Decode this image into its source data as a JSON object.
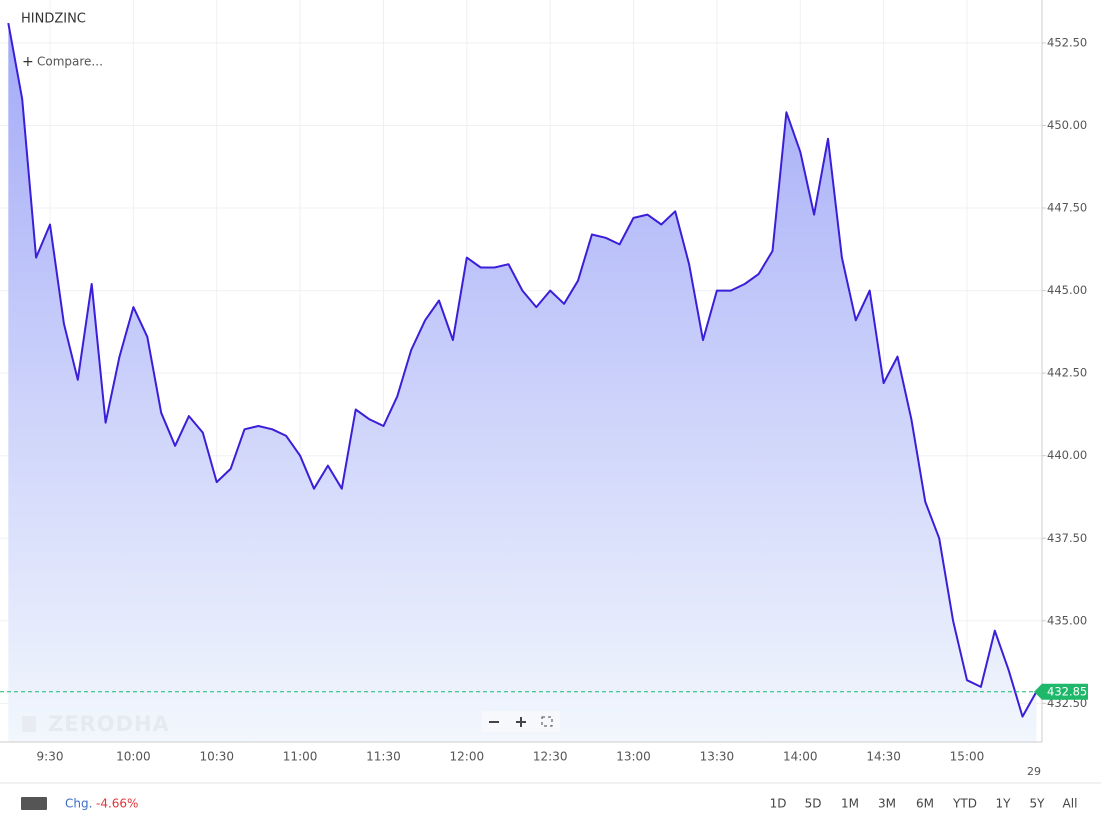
{
  "chart_data": {
    "type": "line",
    "title": "HINDZINC",
    "compare_label": "Compare...",
    "watermark": "ZERODHA",
    "x": [
      "9:15",
      "9:20",
      "9:25",
      "9:30",
      "9:35",
      "9:40",
      "9:45",
      "9:50",
      "9:55",
      "10:00",
      "10:05",
      "10:10",
      "10:15",
      "10:20",
      "10:25",
      "10:30",
      "10:35",
      "10:40",
      "10:45",
      "10:50",
      "10:55",
      "11:00",
      "11:05",
      "11:10",
      "11:15",
      "11:20",
      "11:25",
      "11:30",
      "11:35",
      "11:40",
      "11:45",
      "11:50",
      "11:55",
      "12:00",
      "12:05",
      "12:10",
      "12:15",
      "12:20",
      "12:25",
      "12:30",
      "12:35",
      "12:40",
      "12:45",
      "12:50",
      "12:55",
      "13:00",
      "13:05",
      "13:10",
      "13:15",
      "13:20",
      "13:25",
      "13:30",
      "13:35",
      "13:40",
      "13:45",
      "13:50",
      "13:55",
      "14:00",
      "14:05",
      "14:10",
      "14:15",
      "14:20",
      "14:25",
      "14:30",
      "14:35",
      "14:40",
      "14:45",
      "14:50",
      "14:55",
      "15:00",
      "15:05",
      "15:10",
      "15:15",
      "15:20",
      "15:25"
    ],
    "series": [
      {
        "name": "HINDZINC",
        "color": "#3b1fd8",
        "values": [
          453.1,
          450.8,
          446,
          447,
          444,
          442.3,
          445.2,
          441,
          443,
          444.5,
          443.6,
          441.3,
          440.3,
          441.2,
          440.7,
          439.2,
          439.6,
          440.8,
          440.9,
          440.8,
          440.6,
          440,
          439,
          439.7,
          439,
          441.4,
          441.1,
          440.9,
          441.8,
          443.2,
          444.1,
          444.7,
          443.5,
          446,
          445.7,
          445.7,
          445.8,
          445,
          444.5,
          445,
          444.6,
          445.3,
          446.7,
          446.6,
          446.4,
          447.2,
          447.3,
          447,
          447.4,
          445.8,
          443.5,
          445,
          445,
          445.2,
          445.5,
          446.2,
          450.4,
          449.2,
          447.3,
          449.6,
          446,
          444.1,
          445,
          442.2,
          443,
          441.1,
          438.6,
          437.5,
          435,
          433.2,
          433,
          434.7,
          433.5,
          432.1,
          432.85
        ]
      }
    ],
    "xlim": [
      "9:12",
      "15:27"
    ],
    "xticks": [
      "9:30",
      "10:00",
      "10:30",
      "11:00",
      "11:30",
      "12:00",
      "12:30",
      "13:00",
      "13:30",
      "14:00",
      "14:30",
      "15:00"
    ],
    "next_day_label": "29",
    "ylim": [
      431.33,
      453.8
    ],
    "yticks": [
      {
        "value": 432.5,
        "label": "432.50"
      },
      {
        "value": 435,
        "label": "435.00"
      },
      {
        "value": 437.5,
        "label": "437.50"
      },
      {
        "value": 440,
        "label": "440.00"
      },
      {
        "value": 442.5,
        "label": "442.50"
      },
      {
        "value": 445,
        "label": "445.00"
      },
      {
        "value": 447.5,
        "label": "447.50"
      },
      {
        "value": 450,
        "label": "450.00"
      },
      {
        "value": 452.5,
        "label": "452.50"
      }
    ],
    "grid": true,
    "last_price_color": "#1fb86a"
  },
  "footer": {
    "change_label": "Chg.",
    "change_value": "-4.66%",
    "ranges": [
      "1D",
      "5D",
      "1M",
      "3M",
      "6M",
      "YTD",
      "1Y",
      "5Y",
      "All"
    ]
  }
}
